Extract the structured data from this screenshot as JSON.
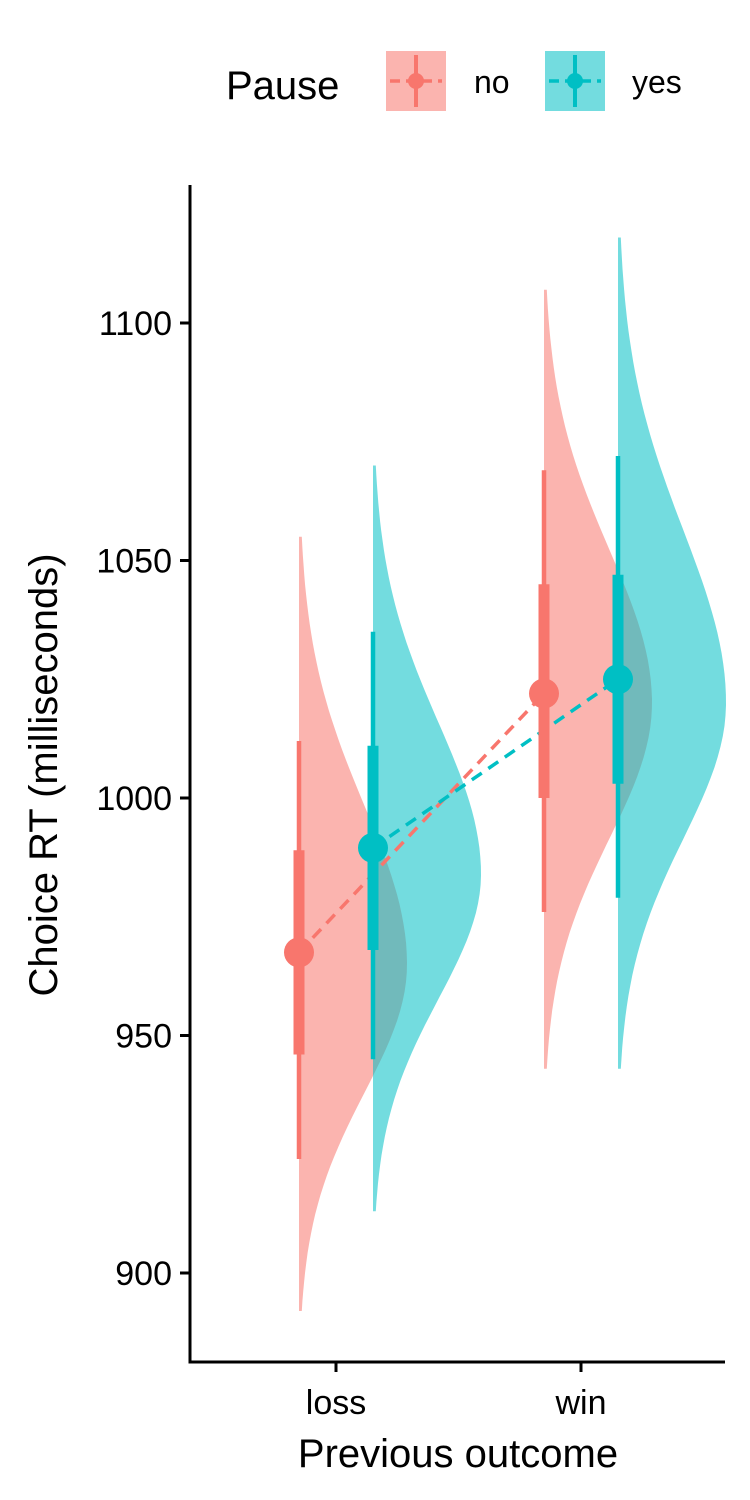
{
  "chart_data": {
    "type": "half-violin with pointrange",
    "xlabel": "Previous outcome",
    "ylabel": "Choice RT (milliseconds)",
    "categories": [
      "loss",
      "win"
    ],
    "ylim": [
      882,
      1125
    ],
    "yticks": [
      900,
      950,
      1000,
      1050,
      1100
    ],
    "legend": {
      "title": "Pause",
      "placement": "top"
    },
    "series": [
      {
        "name": "no",
        "color": "#F8766D",
        "fill": "#F8766D",
        "means": [
          967.5,
          1022
        ],
        "inner_interval": [
          [
            946,
            989
          ],
          [
            1000,
            1045
          ]
        ],
        "outer_interval": [
          [
            924,
            1012
          ],
          [
            976,
            1069
          ]
        ],
        "density_range": [
          [
            892,
            1055
          ],
          [
            943,
            1107
          ]
        ],
        "density_peak": [
          965,
          1020
        ]
      },
      {
        "name": "yes",
        "color": "#00BFC4",
        "fill": "#00BFC4",
        "means": [
          989.5,
          1025
        ],
        "inner_interval": [
          [
            968,
            1011
          ],
          [
            1003,
            1047
          ]
        ],
        "outer_interval": [
          [
            945,
            1035
          ],
          [
            979,
            1072
          ]
        ],
        "density_range": [
          [
            913,
            1070
          ],
          [
            943,
            1118
          ]
        ],
        "density_peak": [
          984,
          1020
        ]
      }
    ]
  }
}
